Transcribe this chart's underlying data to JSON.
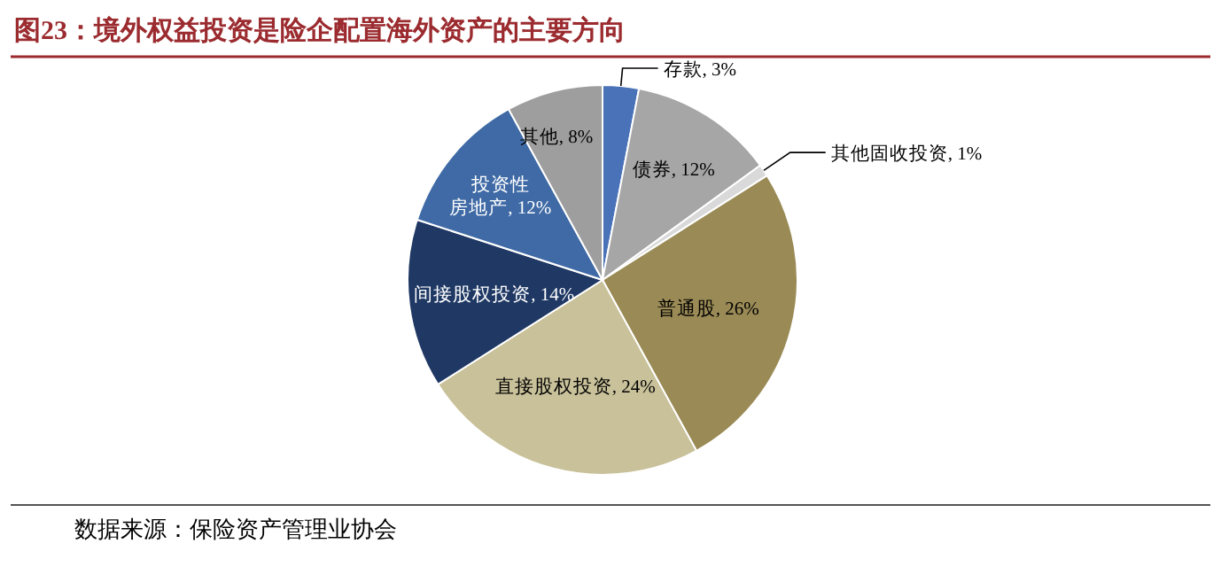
{
  "chart_data": {
    "type": "pie",
    "title": "图23：境外权益投资是险企配置海外资产的主要方向",
    "categories": [
      "存款",
      "债券",
      "其他固收投资",
      "普通股",
      "直接股权投资",
      "间接股权投资",
      "投资性房地产",
      "其他"
    ],
    "values": [
      3,
      12,
      1,
      26,
      24,
      14,
      12,
      8
    ],
    "value_labels": [
      "3%",
      "12%",
      "1%",
      "26%",
      "24%",
      "14%",
      "12%",
      "8%"
    ],
    "colors": [
      "#4a72b8",
      "#a6a6a6",
      "#d9d9d9",
      "#9a8a55",
      "#c9c19a",
      "#1f3864",
      "#3f6aa5",
      "#9e9e9e"
    ],
    "annotations": [
      "数据来源：保险资产管理业协会"
    ]
  }
}
